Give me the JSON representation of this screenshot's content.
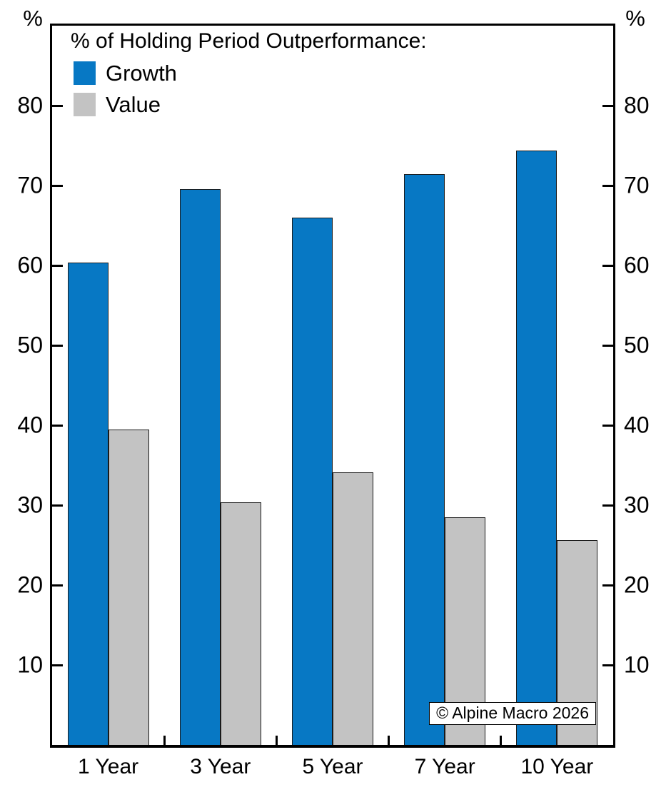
{
  "chart_data": {
    "type": "bar",
    "title": "% of Holding Period Outperformance:",
    "categories": [
      "1 Year",
      "3 Year",
      "5 Year",
      "7 Year",
      "10 Year"
    ],
    "series": [
      {
        "name": "Growth",
        "color": "#0778C4",
        "values": [
          60.4,
          69.6,
          66.0,
          71.4,
          74.4
        ]
      },
      {
        "name": "Value",
        "color": "#C3C3C3",
        "values": [
          39.5,
          30.4,
          34.1,
          28.5,
          25.6
        ]
      }
    ],
    "ylim": [
      0,
      90
    ],
    "yticks": [
      10,
      20,
      30,
      40,
      50,
      60,
      70,
      80
    ],
    "y_unit_left": "%",
    "y_unit_right": "%",
    "grid": false,
    "legend_position": "top-left-inside",
    "annotation": "© Alpine Macro 2026"
  }
}
